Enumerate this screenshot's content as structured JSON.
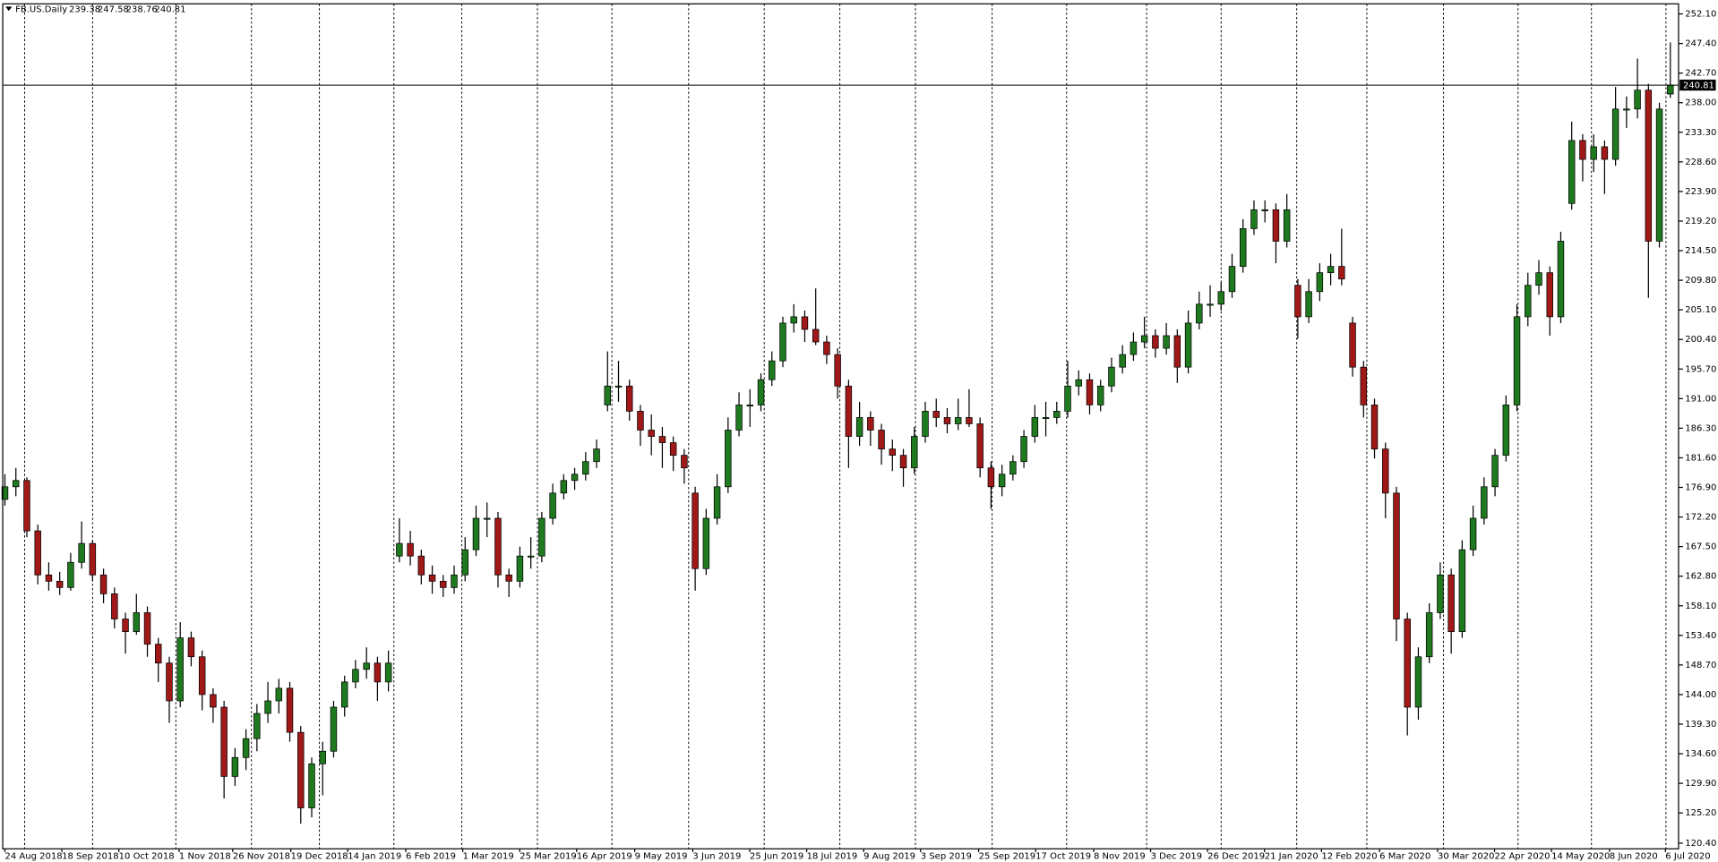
{
  "chart_data": {
    "type": "candlestick",
    "title": "FB.US.Daily",
    "up_color": "#1f7a1f",
    "down_color": "#a01818",
    "wick_color": "#000000",
    "grid": true,
    "xlim": [
      -0.2,
      152.8
    ],
    "ylim": [
      119.5,
      253.7
    ],
    "yticks": [
      {
        "value": 252.1,
        "label": "252.10"
      },
      {
        "value": 247.4,
        "label": "247.40"
      },
      {
        "value": 242.7,
        "label": "242.70"
      },
      {
        "value": 238,
        "label": "238.00"
      },
      {
        "value": 233.3,
        "label": "233.30"
      },
      {
        "value": 228.6,
        "label": "228.60"
      },
      {
        "value": 223.9,
        "label": "223.90"
      },
      {
        "value": 219.2,
        "label": "219.20"
      },
      {
        "value": 214.5,
        "label": "214.50"
      },
      {
        "value": 209.8,
        "label": "209.80"
      },
      {
        "value": 205.1,
        "label": "205.10"
      },
      {
        "value": 200.4,
        "label": "200.40"
      },
      {
        "value": 195.7,
        "label": "195.70"
      },
      {
        "value": 191,
        "label": "191.00"
      },
      {
        "value": 186.3,
        "label": "186.30"
      },
      {
        "value": 181.6,
        "label": "181.60"
      },
      {
        "value": 176.9,
        "label": "176.90"
      },
      {
        "value": 172.2,
        "label": "172.20"
      },
      {
        "value": 167.5,
        "label": "167.50"
      },
      {
        "value": 162.8,
        "label": "162.80"
      },
      {
        "value": 158.1,
        "label": "158.10"
      },
      {
        "value": 153.4,
        "label": "153.40"
      },
      {
        "value": 148.7,
        "label": "148.70"
      },
      {
        "value": 144,
        "label": "144.00"
      },
      {
        "value": 139.3,
        "label": "139.30"
      },
      {
        "value": 134.6,
        "label": "134.60"
      },
      {
        "value": 129.9,
        "label": "129.90"
      },
      {
        "value": 125.2,
        "label": "125.20"
      },
      {
        "value": 120.4,
        "label": "120.40"
      }
    ],
    "xticks": [
      {
        "value": 0,
        "label": "24 Aug 2018"
      },
      {
        "value": 5.2,
        "label": "18 Sep 2018"
      },
      {
        "value": 10.4,
        "label": "10 Oct 2018"
      },
      {
        "value": 15.9,
        "label": "1 Nov 2018"
      },
      {
        "value": 20.8,
        "label": "26 Nov 2018"
      },
      {
        "value": 26.1,
        "label": "19 Dec 2018"
      },
      {
        "value": 31.3,
        "label": "14 Jan 2019"
      },
      {
        "value": 36.6,
        "label": "6 Feb 2019"
      },
      {
        "value": 41.8,
        "label": "1 Mar 2019"
      },
      {
        "value": 47,
        "label": "25 Mar 2019"
      },
      {
        "value": 52.2,
        "label": "16 Apr 2019"
      },
      {
        "value": 57.5,
        "label": "9 May 2019"
      },
      {
        "value": 62.8,
        "label": "3 Jun 2019"
      },
      {
        "value": 68,
        "label": "25 Jun 2019"
      },
      {
        "value": 73.2,
        "label": "18 Jul 2019"
      },
      {
        "value": 78.4,
        "label": "9 Aug 2019"
      },
      {
        "value": 83.6,
        "label": "3 Sep 2019"
      },
      {
        "value": 88.9,
        "label": "25 Sep 2019"
      },
      {
        "value": 94.1,
        "label": "17 Oct 2019"
      },
      {
        "value": 99.4,
        "label": "8 Nov 2019"
      },
      {
        "value": 104.6,
        "label": "3 Dec 2019"
      },
      {
        "value": 109.8,
        "label": "26 Dec 2019"
      },
      {
        "value": 115,
        "label": "21 Jan 2020"
      },
      {
        "value": 120.2,
        "label": "12 Feb 2020"
      },
      {
        "value": 125.5,
        "label": "6 Mar 2020"
      },
      {
        "value": 130.8,
        "label": "30 Mar 2020"
      },
      {
        "value": 136,
        "label": "22 Apr 2020"
      },
      {
        "value": 141.2,
        "label": "14 May 2020"
      },
      {
        "value": 146.5,
        "label": "8 Jun 2020"
      },
      {
        "value": 151.6,
        "label": "6 Jul 2020"
      }
    ],
    "xgrid": [
      1.8,
      8,
      15.6,
      22.5,
      28.7,
      35.5,
      41.7,
      48.6,
      55.4,
      62.4,
      69.3,
      76.2,
      83.1,
      90.1,
      96.9,
      104.2,
      111,
      117.9,
      124.3,
      131.3,
      138.1,
      144.8,
      151.6
    ],
    "ohlc": [
      [
        175,
        179,
        174,
        177
      ],
      [
        177,
        180,
        175.5,
        178
      ],
      [
        178,
        178.5,
        169,
        170
      ],
      [
        170,
        171,
        161.5,
        163
      ],
      [
        163,
        165,
        160.5,
        162
      ],
      [
        162,
        163.5,
        159.8,
        161
      ],
      [
        161,
        166.5,
        160.5,
        165
      ],
      [
        165,
        171.5,
        164,
        168
      ],
      [
        168,
        168.5,
        162,
        163
      ],
      [
        163,
        164,
        158.5,
        160
      ],
      [
        160,
        161,
        154.5,
        156
      ],
      [
        156,
        157,
        150.5,
        154
      ],
      [
        154,
        160,
        153.5,
        157
      ],
      [
        157,
        158,
        150,
        152
      ],
      [
        152,
        153,
        146,
        149
      ],
      [
        149,
        150,
        139.5,
        143
      ],
      [
        143,
        155.5,
        142,
        153
      ],
      [
        153,
        154,
        148.5,
        150
      ],
      [
        150,
        151,
        141.5,
        144
      ],
      [
        144,
        145,
        139.5,
        142
      ],
      [
        142,
        143,
        127.5,
        131
      ],
      [
        131,
        135.5,
        129.5,
        134
      ],
      [
        134,
        138.5,
        132,
        137
      ],
      [
        137,
        142.5,
        135,
        141
      ],
      [
        141,
        146,
        139.5,
        143
      ],
      [
        143,
        146.5,
        141,
        145
      ],
      [
        145,
        146,
        136.5,
        138
      ],
      [
        138,
        139,
        123.5,
        126
      ],
      [
        126,
        134,
        124.5,
        133
      ],
      [
        133,
        136.5,
        128,
        135
      ],
      [
        135,
        143,
        134,
        142
      ],
      [
        142,
        147,
        140.5,
        146
      ],
      [
        146,
        149.5,
        145,
        148
      ],
      [
        148,
        151.5,
        146.5,
        149
      ],
      [
        149,
        150,
        143,
        146
      ],
      [
        146,
        151,
        144.5,
        149
      ],
      [
        166,
        172,
        165,
        168
      ],
      [
        168,
        170,
        164.5,
        166
      ],
      [
        166,
        167,
        161.5,
        163
      ],
      [
        163,
        164.5,
        160,
        162
      ],
      [
        162,
        163,
        159.5,
        161
      ],
      [
        161,
        164.5,
        160,
        163
      ],
      [
        163,
        169,
        162,
        167
      ],
      [
        167,
        174,
        166,
        172
      ],
      [
        172,
        174.5,
        169,
        172
      ],
      [
        172,
        173,
        161,
        163
      ],
      [
        163,
        164,
        159.5,
        162
      ],
      [
        162,
        167.5,
        161,
        166
      ],
      [
        166,
        169,
        164,
        166
      ],
      [
        166,
        173,
        165,
        172
      ],
      [
        172,
        177.5,
        171,
        176
      ],
      [
        176,
        179,
        175,
        178
      ],
      [
        178,
        180,
        176.5,
        179
      ],
      [
        179,
        182.5,
        178,
        181
      ],
      [
        181,
        184.5,
        180,
        183
      ],
      [
        190,
        198.5,
        189,
        193
      ],
      [
        193,
        197,
        190.5,
        193
      ],
      [
        193,
        194,
        187.5,
        189
      ],
      [
        189,
        190,
        183.5,
        186
      ],
      [
        186,
        188.5,
        182,
        185
      ],
      [
        185,
        186.5,
        180,
        184
      ],
      [
        184,
        185,
        179.5,
        182
      ],
      [
        182,
        183,
        177.5,
        180
      ],
      [
        176,
        177,
        160.5,
        164
      ],
      [
        164,
        173.5,
        163,
        172
      ],
      [
        172,
        179,
        171,
        177
      ],
      [
        177,
        188,
        176,
        186
      ],
      [
        186,
        192,
        185,
        190
      ],
      [
        190,
        192.5,
        186.5,
        190
      ],
      [
        190,
        195,
        189,
        194
      ],
      [
        194,
        198.5,
        193,
        197
      ],
      [
        197,
        204,
        196,
        203
      ],
      [
        203,
        206,
        201.5,
        204
      ],
      [
        204,
        205,
        200,
        202
      ],
      [
        202,
        208.5,
        199.5,
        200
      ],
      [
        200,
        201,
        196.5,
        198
      ],
      [
        198,
        199,
        191,
        193
      ],
      [
        193,
        194,
        180,
        185
      ],
      [
        185,
        190.5,
        183.5,
        188
      ],
      [
        188,
        189,
        183.5,
        186
      ],
      [
        186,
        187,
        180.5,
        183
      ],
      [
        183,
        184.5,
        179.5,
        182
      ],
      [
        182,
        183,
        177,
        180
      ],
      [
        180,
        186.5,
        179,
        185
      ],
      [
        185,
        190.5,
        184,
        189
      ],
      [
        189,
        191,
        186.5,
        188
      ],
      [
        188,
        189.5,
        185.5,
        187
      ],
      [
        187,
        191,
        186,
        188
      ],
      [
        188,
        192.5,
        186.5,
        187
      ],
      [
        187,
        188,
        178.5,
        180
      ],
      [
        180,
        181,
        173.5,
        177
      ],
      [
        177,
        180.5,
        175.5,
        179
      ],
      [
        179,
        182,
        178,
        181
      ],
      [
        181,
        186,
        180,
        185
      ],
      [
        185,
        190,
        184,
        188
      ],
      [
        188,
        190.5,
        185,
        188
      ],
      [
        188,
        190.5,
        187,
        189
      ],
      [
        189,
        197,
        188,
        193
      ],
      [
        193,
        195.5,
        191.5,
        194
      ],
      [
        194,
        195,
        188.5,
        190
      ],
      [
        190,
        194,
        189,
        193
      ],
      [
        193,
        197.5,
        192,
        196
      ],
      [
        196,
        199.5,
        195,
        198
      ],
      [
        198,
        201.5,
        197,
        200
      ],
      [
        200,
        204,
        199,
        201
      ],
      [
        201,
        202,
        197.5,
        199
      ],
      [
        199,
        203,
        198,
        201
      ],
      [
        201,
        202,
        193.5,
        196
      ],
      [
        196,
        205,
        195,
        203
      ],
      [
        203,
        208,
        202,
        206
      ],
      [
        206,
        209,
        204,
        206
      ],
      [
        206,
        209.5,
        205,
        208
      ],
      [
        208,
        214,
        207,
        212
      ],
      [
        212,
        219.5,
        211,
        218
      ],
      [
        218,
        222.5,
        217,
        221
      ],
      [
        221,
        222.5,
        219,
        221
      ],
      [
        221,
        222,
        212.5,
        216
      ],
      [
        216,
        223.5,
        215,
        221
      ],
      [
        209,
        210,
        200.5,
        204
      ],
      [
        204,
        210,
        203,
        208
      ],
      [
        208,
        212.5,
        206.5,
        211
      ],
      [
        211,
        214,
        209,
        212
      ],
      [
        212,
        218,
        209,
        210
      ],
      [
        203,
        204,
        194.5,
        196
      ],
      [
        196,
        197,
        188,
        190
      ],
      [
        190,
        191,
        181.5,
        183
      ],
      [
        183,
        184,
        172,
        176
      ],
      [
        176,
        177,
        152.5,
        156
      ],
      [
        156,
        157,
        137.5,
        142
      ],
      [
        142,
        151.5,
        140,
        150
      ],
      [
        150,
        158.5,
        149,
        157
      ],
      [
        157,
        165,
        156,
        163
      ],
      [
        163,
        164,
        150.5,
        154
      ],
      [
        154,
        168.5,
        153,
        167
      ],
      [
        167,
        174,
        166,
        172
      ],
      [
        172,
        178.5,
        171,
        177
      ],
      [
        177,
        183,
        175.5,
        182
      ],
      [
        182,
        191.5,
        181,
        190
      ],
      [
        190,
        206,
        189,
        204
      ],
      [
        204,
        211,
        202.5,
        209
      ],
      [
        209,
        213,
        207.5,
        211
      ],
      [
        211,
        212,
        201,
        204
      ],
      [
        204,
        217.5,
        203,
        216
      ],
      [
        222,
        235,
        221,
        232
      ],
      [
        232,
        233,
        225.5,
        229
      ],
      [
        229,
        233,
        227,
        231
      ],
      [
        231,
        232,
        223.5,
        229
      ],
      [
        229,
        240.5,
        228,
        237
      ],
      [
        237,
        239,
        234,
        237
      ],
      [
        237,
        245,
        235.5,
        240
      ],
      [
        240,
        241,
        207,
        216
      ],
      [
        216,
        238,
        215,
        237
      ],
      [
        239.38,
        247.58,
        238.76,
        240.81
      ]
    ]
  }
}
